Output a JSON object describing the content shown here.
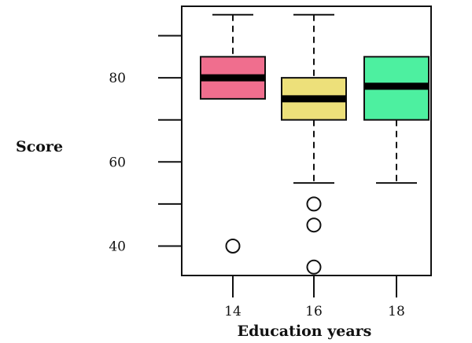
{
  "chart_data": {
    "type": "box",
    "title": "",
    "xlabel": "Education years",
    "ylabel": "Score",
    "ylim": [
      33,
      97
    ],
    "y_ticks": [
      40,
      50,
      60,
      70,
      80,
      90
    ],
    "y_tick_labels": [
      "40",
      "",
      "60",
      "",
      "80",
      ""
    ],
    "grid": false,
    "legend": "none",
    "categories": [
      "14",
      "16",
      "18"
    ],
    "boxes": [
      {
        "category": "14",
        "whisker_low": 75,
        "q1": 75,
        "median": 80,
        "q3": 85,
        "whisker_high": 95,
        "outliers": [
          40
        ],
        "color": "#f06e8e"
      },
      {
        "category": "16",
        "whisker_low": 55,
        "q1": 70,
        "median": 75,
        "q3": 80,
        "whisker_high": 95,
        "outliers": [
          50,
          45,
          35
        ],
        "color": "#ede07a"
      },
      {
        "category": "18",
        "whisker_low": 55,
        "q1": 70,
        "median": 78,
        "q3": 85,
        "whisker_high": 85,
        "outliers": [],
        "color": "#4df0a0"
      }
    ]
  }
}
